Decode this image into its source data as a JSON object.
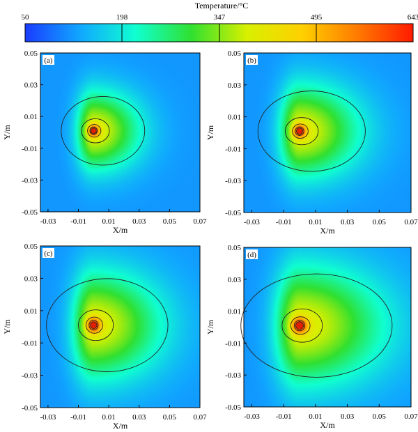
{
  "figure": {
    "colorbar": {
      "title": "Temperature/°C",
      "ticks": [
        "50",
        "198",
        "347",
        "495",
        "643"
      ],
      "range": [
        50,
        643
      ],
      "colors": [
        "#1a3cff",
        "#10a8ff",
        "#10ffd0",
        "#30e030",
        "#d8f000",
        "#ffd000",
        "#ff7a00",
        "#ff1a00"
      ]
    }
  },
  "chart_data": [
    {
      "type": "heatmap",
      "panel_label": "(a)",
      "xlabel": "X/m",
      "ylabel": "Y/m",
      "xlim": [
        -0.035,
        0.07
      ],
      "ylim": [
        -0.05,
        0.05
      ],
      "xticks": [
        "-0.03",
        "-0.01",
        "0.01",
        "0.03",
        "0.05",
        "0.07"
      ],
      "yticks": [
        "0.05",
        "0.03",
        "0.01",
        "-0.01",
        "-0.03",
        "-0.05"
      ],
      "heat_source": {
        "x": 0.0,
        "y": 0.001,
        "peak": 643
      },
      "field_extent": {
        "right_m": 0.022,
        "front_m": 0.015,
        "back_m": 0.008,
        "sigma_y_m": 0.018
      }
    },
    {
      "type": "heatmap",
      "panel_label": "(b)",
      "xlabel": "X/m",
      "ylabel": "Y/m",
      "xlim": [
        -0.035,
        0.07
      ],
      "ylim": [
        -0.05,
        0.05
      ],
      "xticks": [
        "-0.03",
        "-0.01",
        "0.01",
        "0.03",
        "0.05",
        "0.07"
      ],
      "yticks": [
        "0.05",
        "0.03",
        "0.01",
        "-0.01",
        "-0.03",
        "-0.05"
      ],
      "heat_source": {
        "x": 0.0,
        "y": 0.001,
        "peak": 643
      },
      "field_extent": {
        "right_m": 0.027,
        "front_m": 0.018,
        "back_m": 0.009,
        "sigma_y_m": 0.021
      }
    },
    {
      "type": "heatmap",
      "panel_label": "(c)",
      "xlabel": "X/m",
      "ylabel": "Y/m",
      "xlim": [
        -0.035,
        0.07
      ],
      "ylim": [
        -0.05,
        0.05
      ],
      "xticks": [
        "-0.03",
        "-0.01",
        "0.01",
        "0.03",
        "0.05",
        "0.07"
      ],
      "yticks": [
        "0.05",
        "0.03",
        "0.01",
        "-0.01",
        "-0.03",
        "-0.05"
      ],
      "heat_source": {
        "x": 0.0,
        "y": 0.001,
        "peak": 643
      },
      "field_extent": {
        "right_m": 0.032,
        "front_m": 0.021,
        "back_m": 0.01,
        "sigma_y_m": 0.024
      }
    },
    {
      "type": "heatmap",
      "panel_label": "(d)",
      "xlabel": "X/m",
      "ylabel": "Y/m",
      "xlim": [
        -0.035,
        0.07
      ],
      "ylim": [
        -0.05,
        0.05
      ],
      "xticks": [
        "-0.03",
        "-0.01",
        "0.01",
        "0.03",
        "0.05",
        "0.07"
      ],
      "yticks": [
        "0.05",
        "0.03",
        "0.01",
        "-0.01",
        "-0.03",
        "-0.05"
      ],
      "heat_source": {
        "x": 0.0,
        "y": 0.001,
        "peak": 643
      },
      "field_extent": {
        "right_m": 0.038,
        "front_m": 0.024,
        "back_m": 0.011,
        "sigma_y_m": 0.027
      }
    }
  ]
}
